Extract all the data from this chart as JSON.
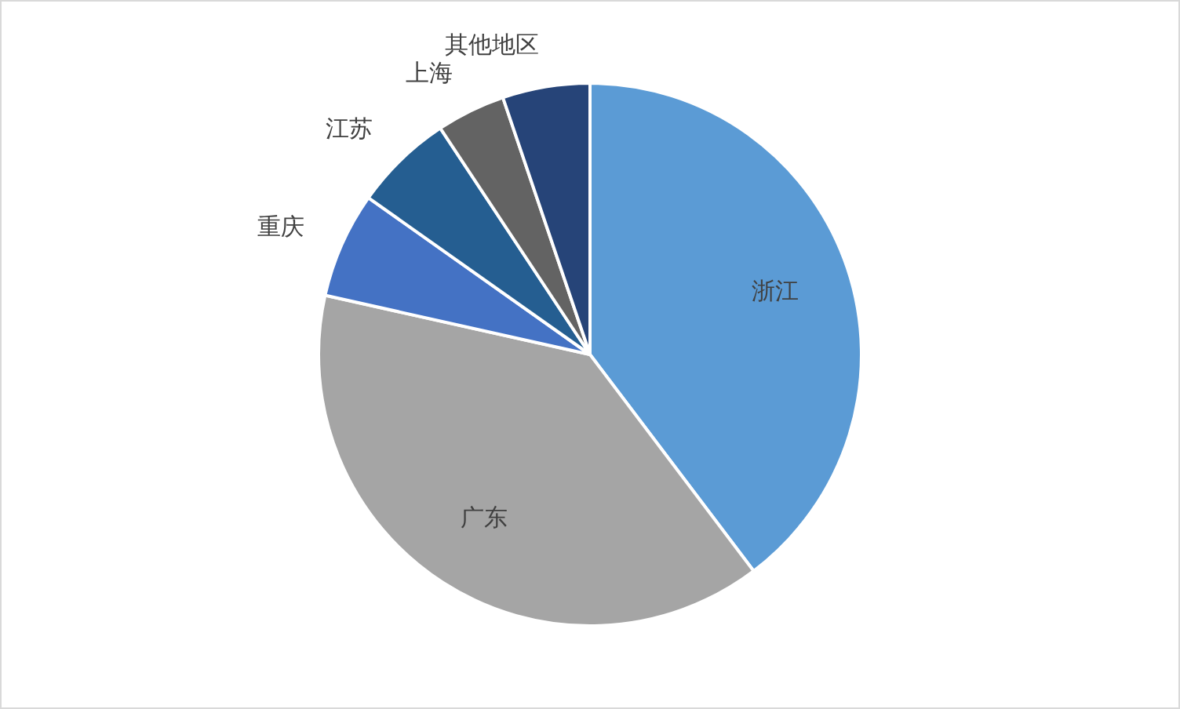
{
  "chart_data": {
    "type": "pie",
    "categories": [
      "浙江",
      "广东",
      "重庆",
      "江苏",
      "上海",
      "其他地区"
    ],
    "values": [
      39.7,
      38.8,
      6.3,
      5.9,
      4.1,
      5.2
    ],
    "colors": [
      "#5b9bd5",
      "#a5a5a5",
      "#4472c4",
      "#255e91",
      "#636363",
      "#264478"
    ]
  }
}
